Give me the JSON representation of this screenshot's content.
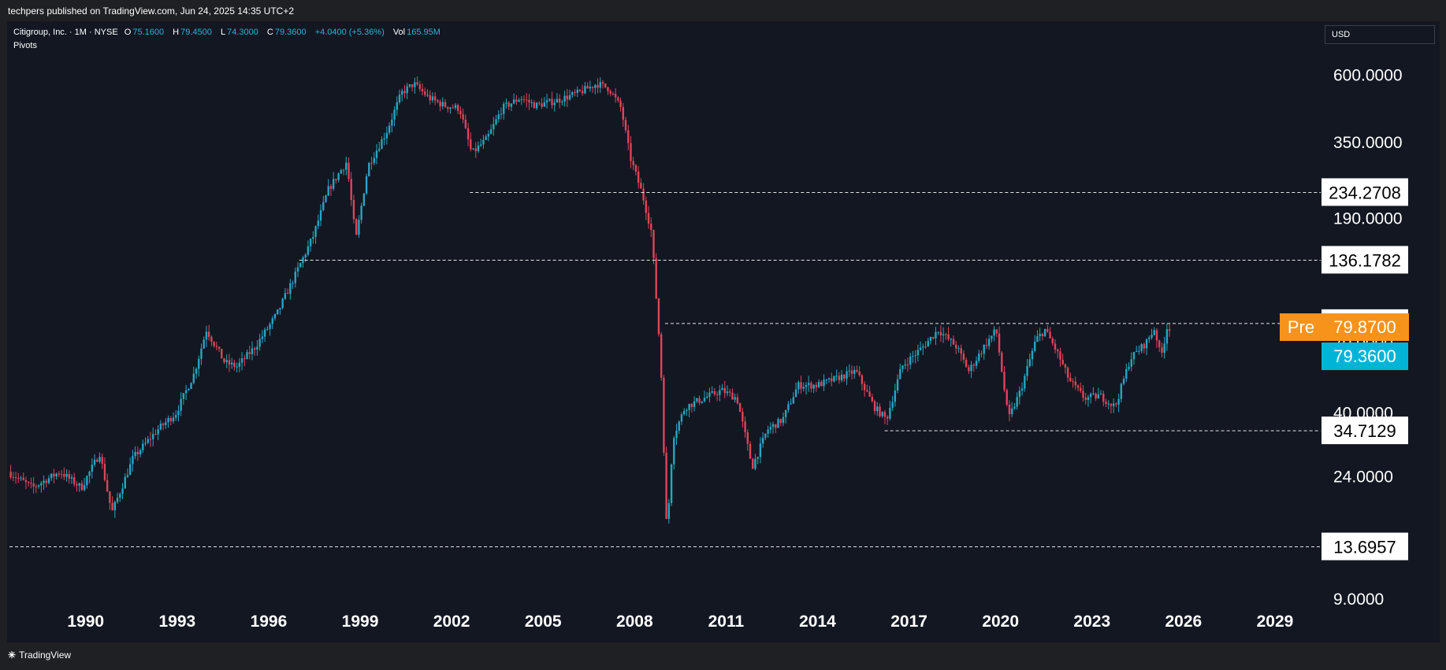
{
  "header": {
    "published": "techpers published on TradingView.com, Jun 24, 2025 14:35 UTC+2"
  },
  "legend": {
    "symbol": "Citigroup, Inc. · 1M · NYSE",
    "o_label": "O",
    "o_value": "75.1600",
    "h_label": "H",
    "h_value": "79.4500",
    "l_label": "L",
    "l_value": "74.3000",
    "c_label": "C",
    "c_value": "79.3600",
    "change": "+4.0400 (+5.36%)",
    "vol_label": "Vol",
    "vol_value": "165.95M",
    "indicator": "Pivots"
  },
  "currency": "USD",
  "footer": {
    "brand": "TradingView",
    "logo": "tv-logo-icon"
  },
  "colors": {
    "up": "#26a6c2",
    "down": "#e0435a",
    "background": "#131722",
    "pre_badge": "#f7931a",
    "last_badge": "#00b4d8"
  },
  "chart_data": {
    "type": "candlestick",
    "scale": "log",
    "ylim": [
      7.5,
      750
    ],
    "xlim": [
      1987.5,
      2030.5
    ],
    "x_ticks": [
      "1990",
      "1993",
      "1996",
      "1999",
      "2002",
      "2005",
      "2008",
      "2011",
      "2014",
      "2017",
      "2020",
      "2023",
      "2026",
      "2029"
    ],
    "y_ticks": [
      "600.0000",
      "350.0000",
      "190.0000",
      "70.0000",
      "40.0000",
      "24.0000",
      "9.0000"
    ],
    "price_series": [
      [
        1987.5,
        25
      ],
      [
        1988.3,
        22
      ],
      [
        1989.2,
        25
      ],
      [
        1989.9,
        22
      ],
      [
        1990.5,
        29
      ],
      [
        1990.9,
        18
      ],
      [
        1991.6,
        28
      ],
      [
        1992.4,
        35
      ],
      [
        1993.0,
        40
      ],
      [
        1993.6,
        55
      ],
      [
        1994.0,
        78
      ],
      [
        1994.6,
        60
      ],
      [
        1995.0,
        58
      ],
      [
        1995.6,
        68
      ],
      [
        1996.3,
        88
      ],
      [
        1996.9,
        120
      ],
      [
        1997.5,
        165
      ],
      [
        1998.0,
        240
      ],
      [
        1998.6,
        300
      ],
      [
        1998.9,
        160
      ],
      [
        1999.3,
        290
      ],
      [
        1999.9,
        380
      ],
      [
        2000.4,
        520
      ],
      [
        2000.8,
        560
      ],
      [
        2001.3,
        500
      ],
      [
        2001.8,
        470
      ],
      [
        2002.3,
        460
      ],
      [
        2002.7,
        320
      ],
      [
        2003.2,
        360
      ],
      [
        2003.7,
        460
      ],
      [
        2004.3,
        500
      ],
      [
        2004.8,
        470
      ],
      [
        2005.5,
        490
      ],
      [
        2006.2,
        520
      ],
      [
        2006.8,
        560
      ],
      [
        2007.2,
        540
      ],
      [
        2007.6,
        460
      ],
      [
        2007.9,
        310
      ],
      [
        2008.3,
        230
      ],
      [
        2008.6,
        170
      ],
      [
        2008.9,
        60
      ],
      [
        2009.1,
        15
      ],
      [
        2009.3,
        33
      ],
      [
        2009.7,
        42
      ],
      [
        2010.3,
        45
      ],
      [
        2010.9,
        48
      ],
      [
        2011.4,
        45
      ],
      [
        2011.9,
        26
      ],
      [
        2012.4,
        35
      ],
      [
        2012.9,
        38
      ],
      [
        2013.4,
        50
      ],
      [
        2014.0,
        50
      ],
      [
        2014.5,
        52
      ],
      [
        2015.3,
        56
      ],
      [
        2015.9,
        42
      ],
      [
        2016.3,
        38
      ],
      [
        2016.8,
        58
      ],
      [
        2017.5,
        68
      ],
      [
        2018.0,
        78
      ],
      [
        2018.6,
        68
      ],
      [
        2019.0,
        56
      ],
      [
        2019.5,
        68
      ],
      [
        2019.9,
        78
      ],
      [
        2020.3,
        38
      ],
      [
        2020.7,
        48
      ],
      [
        2021.2,
        72
      ],
      [
        2021.5,
        78
      ],
      [
        2021.9,
        65
      ],
      [
        2022.3,
        52
      ],
      [
        2022.8,
        45
      ],
      [
        2023.3,
        46
      ],
      [
        2023.8,
        42
      ],
      [
        2024.3,
        62
      ],
      [
        2024.8,
        70
      ],
      [
        2025.1,
        79
      ],
      [
        2025.3,
        62
      ],
      [
        2025.5,
        79.36
      ]
    ],
    "pivot_levels": [
      {
        "label": "234.2708",
        "value": 234.27,
        "start": 2002.6
      },
      {
        "label": "136.1782",
        "value": 136.18,
        "start": 1997.0
      },
      {
        "label": "81.9967",
        "value": 81.9967,
        "start": 2009.0
      },
      {
        "label": "34.7129",
        "value": 34.71,
        "start": 2016.2
      },
      {
        "label": "13.6957",
        "value": 13.6957,
        "start": 1987.5
      }
    ],
    "pre": {
      "label": "Pre",
      "value": "79.8700"
    },
    "last": {
      "value": "79.3600"
    }
  }
}
